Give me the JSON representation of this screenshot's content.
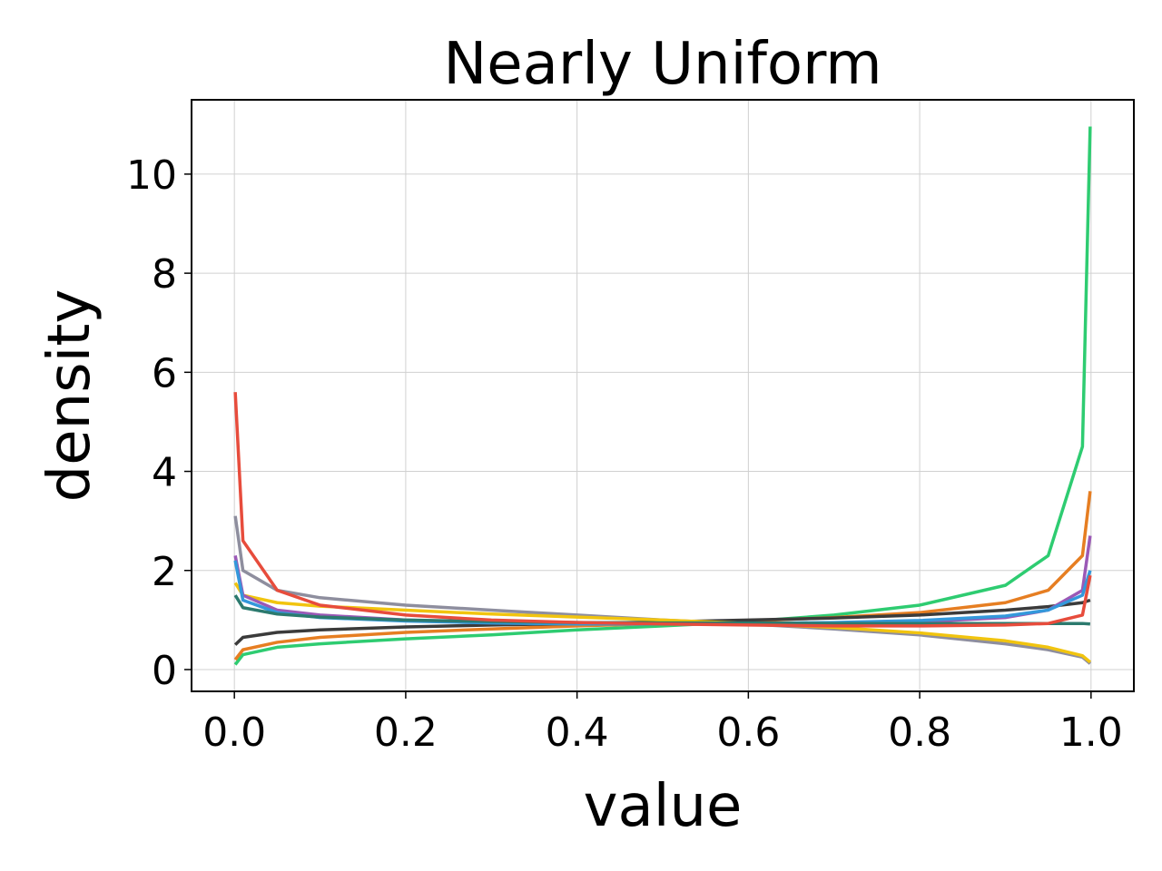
{
  "chart_data": {
    "type": "line",
    "title": "Nearly Uniform",
    "x_label": "value",
    "y_label": "density",
    "x": [
      0.001,
      0.01,
      0.05,
      0.1,
      0.2,
      0.3,
      0.4,
      0.5,
      0.6,
      0.7,
      0.8,
      0.9,
      0.95,
      0.99,
      0.999
    ],
    "series": [
      {
        "color": "#2ecc71",
        "values": [
          0.1,
          0.3,
          0.45,
          0.52,
          0.62,
          0.7,
          0.8,
          0.88,
          0.97,
          1.1,
          1.3,
          1.7,
          2.3,
          4.5,
          10.96
        ]
      },
      {
        "color": "#e67e22",
        "values": [
          0.2,
          0.4,
          0.55,
          0.65,
          0.75,
          0.82,
          0.88,
          0.93,
          0.98,
          1.05,
          1.15,
          1.35,
          1.6,
          2.3,
          3.6
        ]
      },
      {
        "color": "#3b3b3b",
        "values": [
          0.5,
          0.65,
          0.75,
          0.8,
          0.86,
          0.9,
          0.93,
          0.96,
          1.0,
          1.04,
          1.1,
          1.2,
          1.27,
          1.35,
          1.4
        ]
      },
      {
        "color": "#8e8e9e",
        "values": [
          3.1,
          2.0,
          1.6,
          1.45,
          1.3,
          1.2,
          1.1,
          1.0,
          0.92,
          0.82,
          0.7,
          0.52,
          0.4,
          0.25,
          0.12
        ]
      },
      {
        "color": "#f1c40f",
        "values": [
          1.75,
          1.5,
          1.35,
          1.28,
          1.2,
          1.12,
          1.06,
          1.0,
          0.93,
          0.85,
          0.74,
          0.58,
          0.45,
          0.28,
          0.15
        ]
      },
      {
        "color": "#9b59b6",
        "values": [
          2.3,
          1.5,
          1.2,
          1.1,
          1.0,
          0.95,
          0.93,
          0.92,
          0.92,
          0.93,
          0.96,
          1.05,
          1.2,
          1.6,
          2.7
        ]
      },
      {
        "color": "#3498db",
        "values": [
          2.2,
          1.4,
          1.15,
          1.05,
          0.98,
          0.94,
          0.92,
          0.92,
          0.93,
          0.95,
          0.99,
          1.08,
          1.2,
          1.5,
          2.0
        ]
      },
      {
        "color": "#2c7a6e",
        "values": [
          1.5,
          1.25,
          1.12,
          1.06,
          1.0,
          0.97,
          0.95,
          0.94,
          0.94,
          0.93,
          0.93,
          0.93,
          0.93,
          0.93,
          0.92
        ]
      },
      {
        "color": "#e74c3c",
        "values": [
          5.6,
          2.6,
          1.6,
          1.3,
          1.1,
          1.0,
          0.95,
          0.92,
          0.9,
          0.88,
          0.88,
          0.9,
          0.93,
          1.1,
          1.9
        ]
      }
    ],
    "xlim": [
      -0.05,
      1.05
    ],
    "ylim": [
      -0.44,
      11.5
    ],
    "xticks": [
      {
        "value": 0,
        "label": "0.0"
      },
      0.2,
      0.4,
      0.6,
      0.8,
      {
        "value": 1,
        "label": "1.0"
      }
    ],
    "yticks": [
      0,
      2,
      4,
      6,
      8,
      10
    ],
    "grid": true
  }
}
